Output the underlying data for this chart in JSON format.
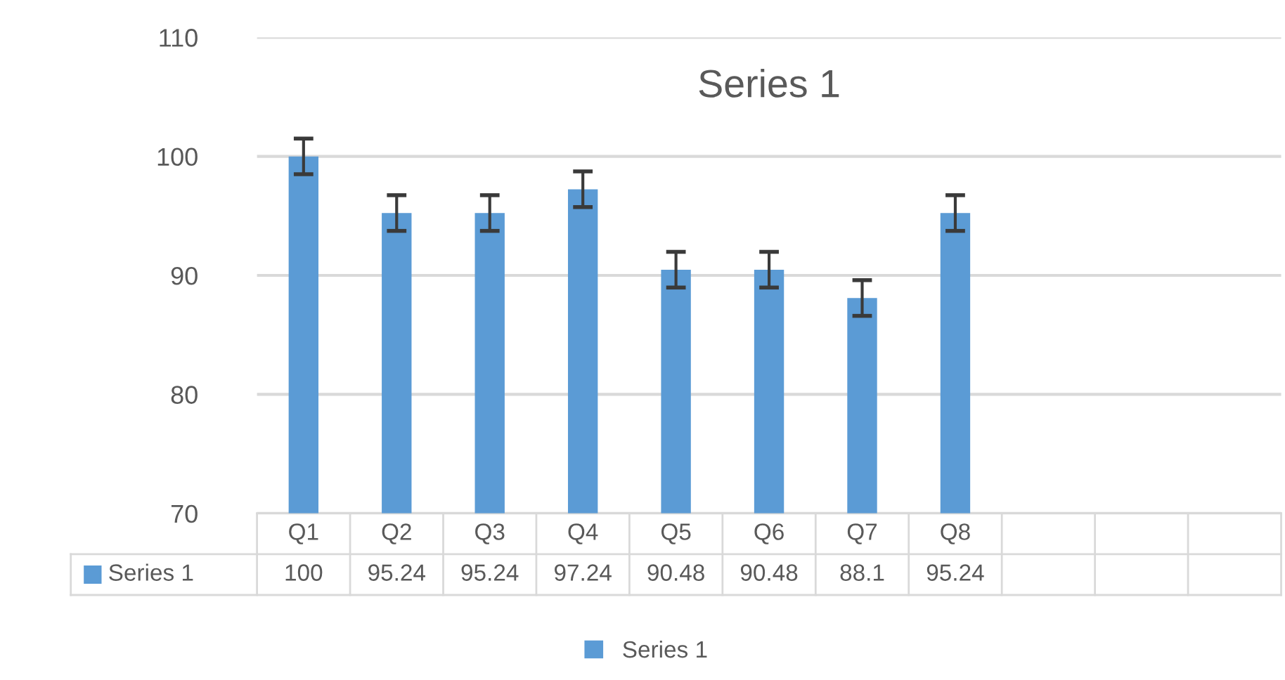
{
  "chart_data": {
    "type": "bar",
    "title": "Series 1",
    "categories": [
      "Q1",
      "Q2",
      "Q3",
      "Q4",
      "Q5",
      "Q6",
      "Q7",
      "Q8",
      null,
      null,
      null
    ],
    "series": [
      {
        "name": "Series 1",
        "color": "#5b9bd5",
        "values": [
          100,
          95.24,
          95.24,
          97.24,
          90.48,
          90.48,
          88.1,
          95.24,
          null,
          null,
          null
        ],
        "errors": [
          1.5,
          1.5,
          1.5,
          1.5,
          1.5,
          1.5,
          1.5,
          1.5,
          null,
          null,
          null
        ]
      }
    ],
    "ylim": [
      70,
      110
    ],
    "yticks": [
      70,
      80,
      90,
      100,
      110
    ],
    "grid": "y",
    "legend": "bottom",
    "data_labels": true
  }
}
